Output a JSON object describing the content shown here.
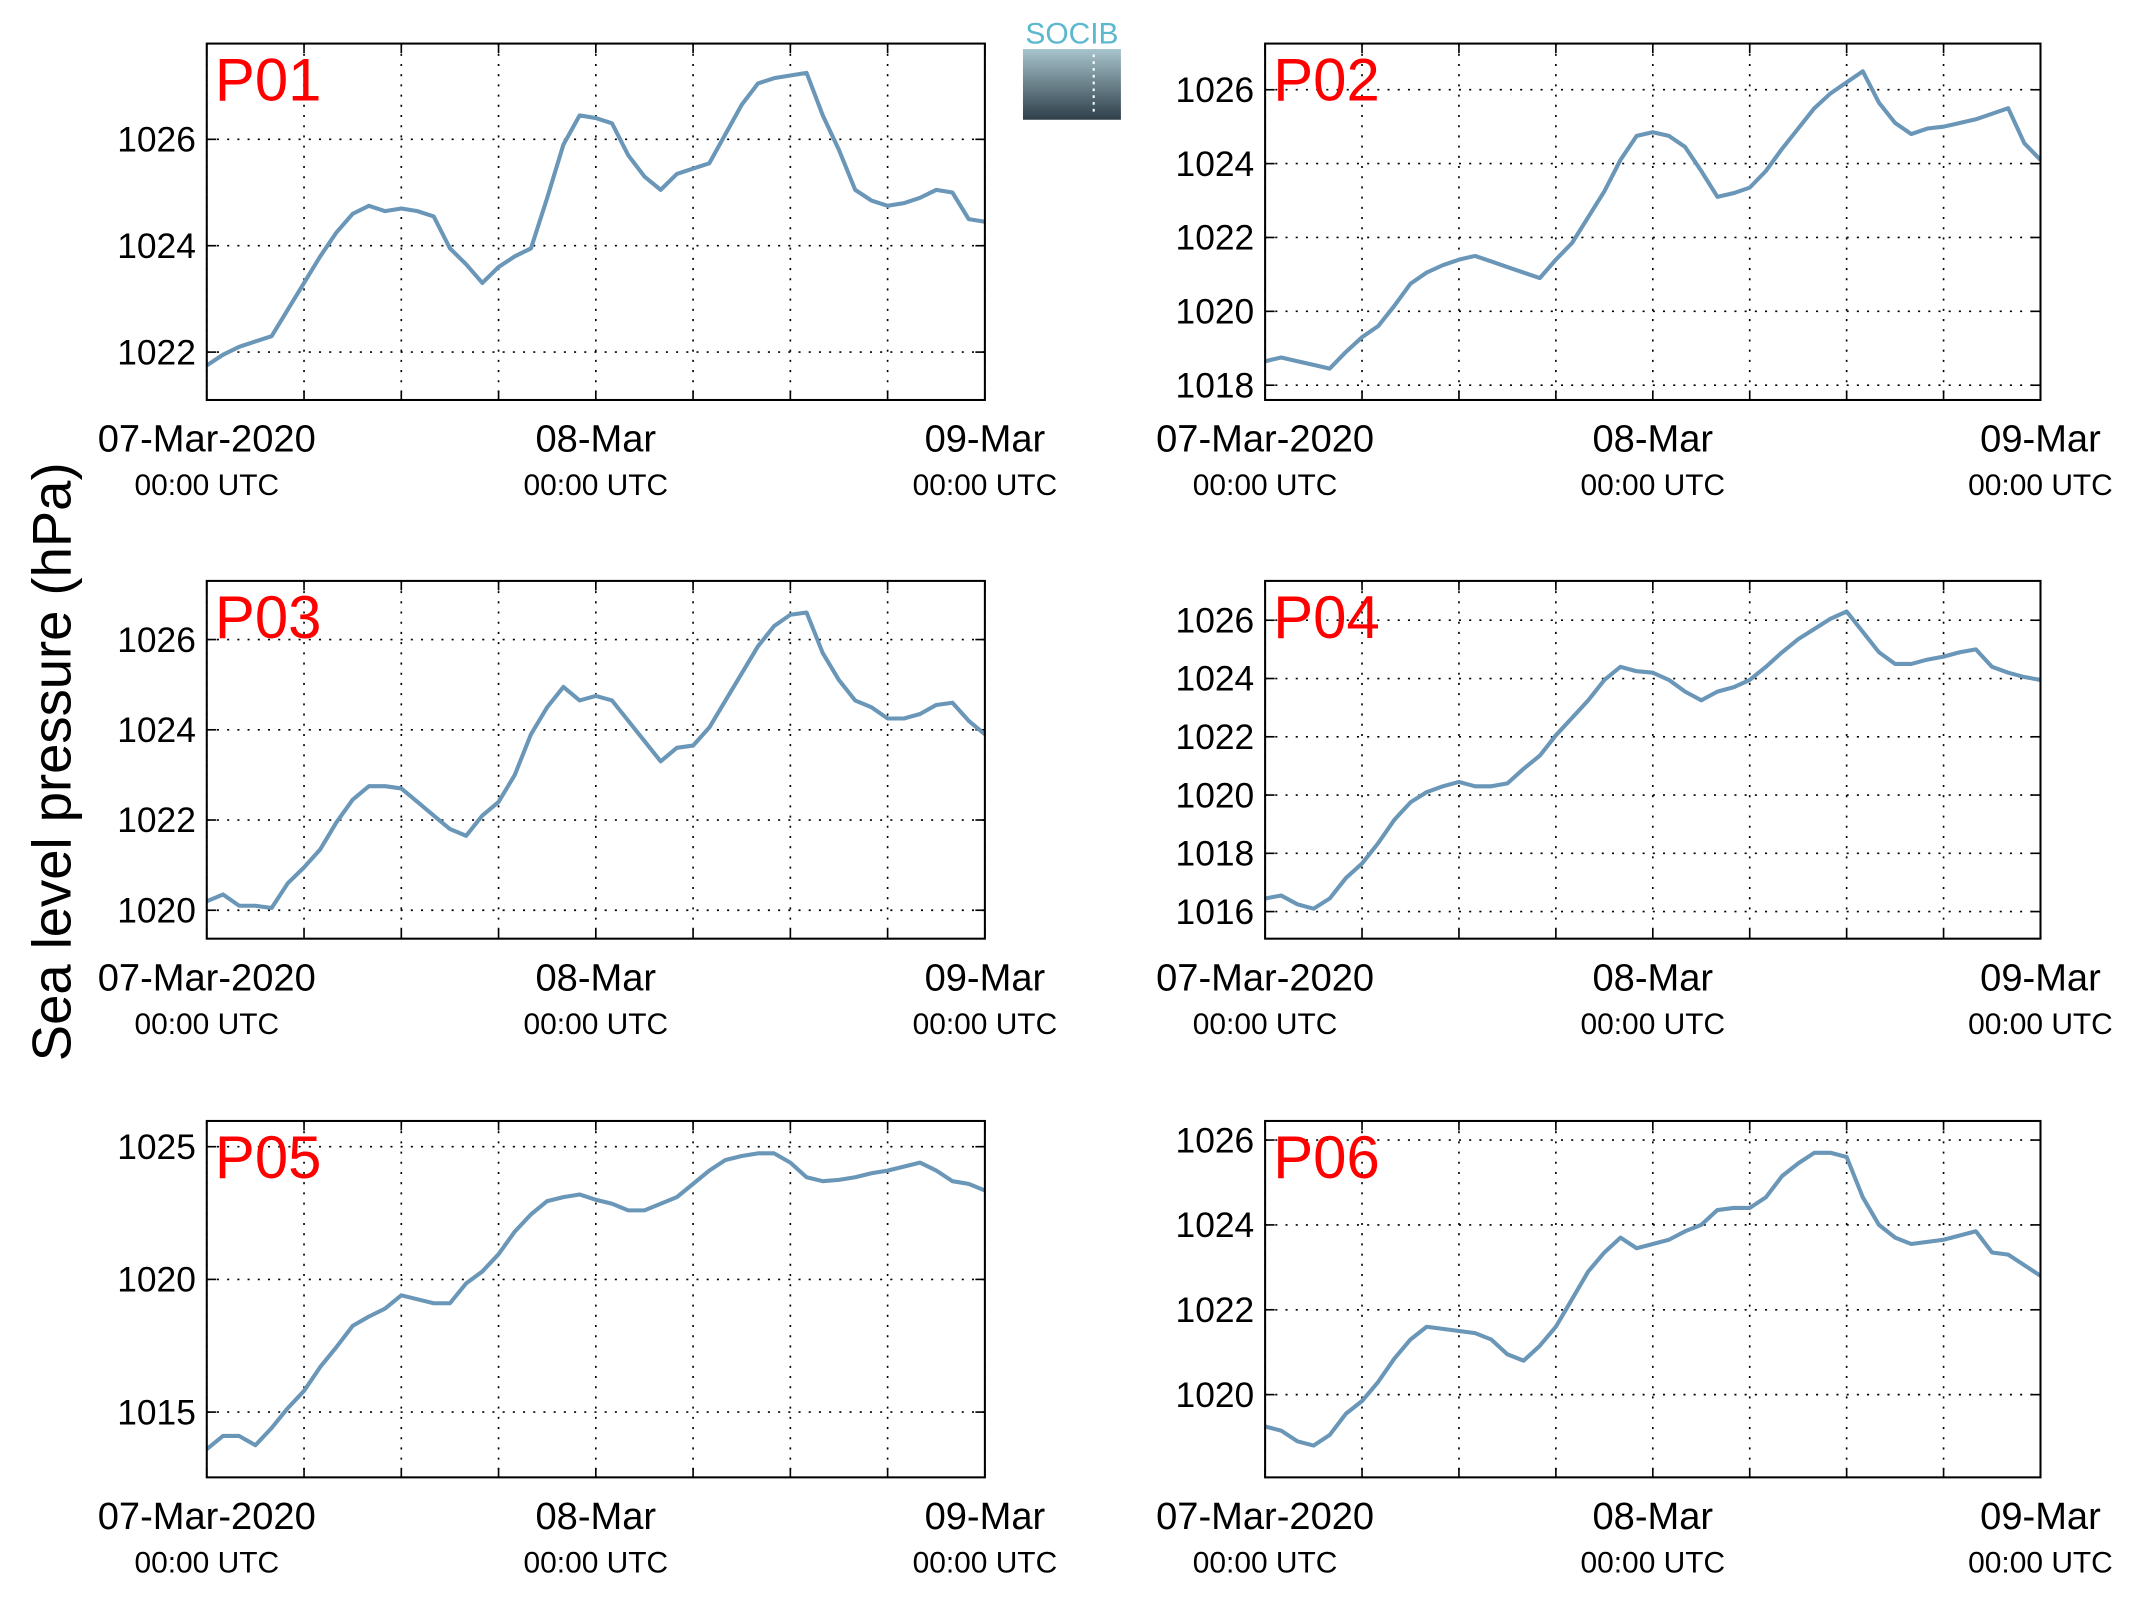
{
  "ylabel": "Sea level pressure (hPa)",
  "logo": "SOCIB",
  "chart_data": [
    {
      "type": "line",
      "title": "P01",
      "title_color": "#ff0000",
      "color": "#6a96b8",
      "grid": true,
      "x": [
        0,
        1,
        2,
        3,
        4,
        5,
        6,
        7,
        8,
        9,
        10,
        11,
        12,
        13,
        14,
        15,
        16,
        17,
        18,
        19,
        20,
        21,
        22,
        23,
        24,
        25,
        26,
        27,
        28,
        29,
        30,
        31,
        32,
        33,
        34,
        35,
        36,
        37,
        38,
        39,
        40,
        41,
        42,
        43,
        44,
        45,
        46,
        47,
        48
      ],
      "values": [
        1021.75,
        1021.95,
        1022.1,
        1022.2,
        1022.3,
        1022.8,
        1023.3,
        1023.8,
        1024.25,
        1024.6,
        1024.75,
        1024.65,
        1024.7,
        1024.65,
        1024.55,
        1023.95,
        1023.65,
        1023.3,
        1023.6,
        1023.8,
        1023.95,
        1024.9,
        1025.9,
        1026.45,
        1026.4,
        1026.3,
        1025.7,
        1025.3,
        1025.05,
        1025.35,
        1025.45,
        1025.55,
        1026.1,
        1026.65,
        1027.05,
        1027.15,
        1027.2,
        1027.25,
        1026.45,
        1025.8,
        1025.05,
        1024.85,
        1024.75,
        1024.8,
        1024.9,
        1025.05,
        1025.0,
        1024.5,
        1024.45
      ],
      "xlim": [
        0,
        48
      ],
      "xticks": [
        {
          "value": 0,
          "label": "07-Mar-2020",
          "sublabel": "00:00 UTC"
        },
        {
          "value": 24,
          "label": "08-Mar",
          "sublabel": "00:00 UTC"
        },
        {
          "value": 48,
          "label": "09-Mar",
          "sublabel": "00:00 UTC"
        }
      ],
      "xminorticks": [
        6,
        12,
        18,
        30,
        36,
        42
      ],
      "ylim": [
        1021.1,
        1027.8
      ],
      "yticks": [
        1022,
        1024,
        1026
      ]
    },
    {
      "type": "line",
      "title": "P02",
      "title_color": "#ff0000",
      "color": "#6a96b8",
      "grid": true,
      "x": [
        0,
        1,
        2,
        3,
        4,
        5,
        6,
        7,
        8,
        9,
        10,
        11,
        12,
        13,
        14,
        15,
        16,
        17,
        18,
        19,
        20,
        21,
        22,
        23,
        24,
        25,
        26,
        27,
        28,
        29,
        30,
        31,
        32,
        33,
        34,
        35,
        36,
        37,
        38,
        39,
        40,
        41,
        42,
        43,
        44,
        45,
        46,
        47,
        48
      ],
      "values": [
        1018.65,
        1018.75,
        1018.65,
        1018.55,
        1018.45,
        1018.9,
        1019.3,
        1019.6,
        1020.15,
        1020.75,
        1021.05,
        1021.25,
        1021.4,
        1021.5,
        1021.35,
        1021.2,
        1021.05,
        1020.9,
        1021.4,
        1021.85,
        1022.55,
        1023.25,
        1024.1,
        1024.75,
        1024.85,
        1024.75,
        1024.45,
        1023.8,
        1023.1,
        1023.2,
        1023.35,
        1023.8,
        1024.4,
        1024.95,
        1025.5,
        1025.9,
        1026.2,
        1026.5,
        1025.65,
        1025.1,
        1024.8,
        1024.95,
        1025.0,
        1025.1,
        1025.2,
        1025.35,
        1025.5,
        1024.55,
        1024.1
      ],
      "xlim": [
        0,
        48
      ],
      "xticks": [
        {
          "value": 0,
          "label": "07-Mar-2020",
          "sublabel": "00:00 UTC"
        },
        {
          "value": 24,
          "label": "08-Mar",
          "sublabel": "00:00 UTC"
        },
        {
          "value": 48,
          "label": "09-Mar",
          "sublabel": "00:00 UTC"
        }
      ],
      "xminorticks": [
        6,
        12,
        18,
        30,
        36,
        42
      ],
      "ylim": [
        1017.6,
        1027.25
      ],
      "yticks": [
        1018,
        1020,
        1022,
        1024,
        1026
      ]
    },
    {
      "type": "line",
      "title": "P03",
      "title_color": "#ff0000",
      "color": "#6a96b8",
      "grid": true,
      "x": [
        0,
        1,
        2,
        3,
        4,
        5,
        6,
        7,
        8,
        9,
        10,
        11,
        12,
        13,
        14,
        15,
        16,
        17,
        18,
        19,
        20,
        21,
        22,
        23,
        24,
        25,
        26,
        27,
        28,
        29,
        30,
        31,
        32,
        33,
        34,
        35,
        36,
        37,
        38,
        39,
        40,
        41,
        42,
        43,
        44,
        45,
        46,
        47,
        48
      ],
      "values": [
        1020.2,
        1020.35,
        1020.1,
        1020.1,
        1020.05,
        1020.6,
        1020.95,
        1021.35,
        1021.95,
        1022.45,
        1022.75,
        1022.75,
        1022.7,
        1022.4,
        1022.1,
        1021.8,
        1021.65,
        1022.1,
        1022.4,
        1023.0,
        1023.9,
        1024.5,
        1024.95,
        1024.65,
        1024.75,
        1024.65,
        1024.2,
        1023.75,
        1023.3,
        1023.6,
        1023.65,
        1024.05,
        1024.65,
        1025.25,
        1025.85,
        1026.3,
        1026.55,
        1026.6,
        1025.7,
        1025.1,
        1024.65,
        1024.5,
        1024.25,
        1024.25,
        1024.35,
        1024.55,
        1024.6,
        1024.2,
        1023.9
      ],
      "xlim": [
        0,
        48
      ],
      "xticks": [
        {
          "value": 0,
          "label": "07-Mar-2020",
          "sublabel": "00:00 UTC"
        },
        {
          "value": 24,
          "label": "08-Mar",
          "sublabel": "00:00 UTC"
        },
        {
          "value": 48,
          "label": "09-Mar",
          "sublabel": "00:00 UTC"
        }
      ],
      "xminorticks": [
        6,
        12,
        18,
        30,
        36,
        42
      ],
      "ylim": [
        1019.37,
        1027.3
      ],
      "yticks": [
        1020,
        1022,
        1024,
        1026
      ]
    },
    {
      "type": "line",
      "title": "P04",
      "title_color": "#ff0000",
      "color": "#6a96b8",
      "grid": true,
      "x": [
        0,
        1,
        2,
        3,
        4,
        5,
        6,
        7,
        8,
        9,
        10,
        11,
        12,
        13,
        14,
        15,
        16,
        17,
        18,
        19,
        20,
        21,
        22,
        23,
        24,
        25,
        26,
        27,
        28,
        29,
        30,
        31,
        32,
        33,
        34,
        35,
        36,
        37,
        38,
        39,
        40,
        41,
        42,
        43,
        44,
        45,
        46,
        47,
        48
      ],
      "values": [
        1016.45,
        1016.55,
        1016.25,
        1016.1,
        1016.45,
        1017.15,
        1017.65,
        1018.35,
        1019.15,
        1019.75,
        1020.1,
        1020.3,
        1020.45,
        1020.3,
        1020.3,
        1020.4,
        1020.9,
        1021.35,
        1022.05,
        1022.65,
        1023.25,
        1023.95,
        1024.4,
        1024.25,
        1024.2,
        1023.95,
        1023.55,
        1023.25,
        1023.55,
        1023.7,
        1023.95,
        1024.4,
        1024.9,
        1025.35,
        1025.7,
        1026.05,
        1026.3,
        1025.6,
        1024.9,
        1024.5,
        1024.5,
        1024.65,
        1024.75,
        1024.9,
        1025.0,
        1024.4,
        1024.2,
        1024.05,
        1023.95
      ],
      "xlim": [
        0,
        48
      ],
      "xticks": [
        {
          "value": 0,
          "label": "07-Mar-2020",
          "sublabel": "00:00 UTC"
        },
        {
          "value": 24,
          "label": "08-Mar",
          "sublabel": "00:00 UTC"
        },
        {
          "value": 48,
          "label": "09-Mar",
          "sublabel": "00:00 UTC"
        }
      ],
      "xminorticks": [
        6,
        12,
        18,
        30,
        36,
        42
      ],
      "ylim": [
        1015.07,
        1027.35
      ],
      "yticks": [
        1016,
        1018,
        1020,
        1022,
        1024,
        1026
      ]
    },
    {
      "type": "line",
      "title": "P05",
      "title_color": "#ff0000",
      "color": "#6a96b8",
      "grid": true,
      "x": [
        0,
        1,
        2,
        3,
        4,
        5,
        6,
        7,
        8,
        9,
        10,
        11,
        12,
        13,
        14,
        15,
        16,
        17,
        18,
        19,
        20,
        21,
        22,
        23,
        24,
        25,
        26,
        27,
        28,
        29,
        30,
        31,
        32,
        33,
        34,
        35,
        36,
        37,
        38,
        39,
        40,
        41,
        42,
        43,
        44,
        45,
        46,
        47,
        48
      ],
      "values": [
        1013.6,
        1014.1,
        1014.1,
        1013.75,
        1014.4,
        1015.15,
        1015.8,
        1016.7,
        1017.45,
        1018.25,
        1018.6,
        1018.9,
        1019.4,
        1019.25,
        1019.1,
        1019.1,
        1019.85,
        1020.3,
        1020.95,
        1021.8,
        1022.45,
        1022.95,
        1023.1,
        1023.2,
        1023.0,
        1022.85,
        1022.6,
        1022.6,
        1022.85,
        1023.1,
        1023.6,
        1024.1,
        1024.5,
        1024.65,
        1024.75,
        1024.75,
        1024.4,
        1023.85,
        1023.7,
        1023.75,
        1023.85,
        1024.0,
        1024.1,
        1024.25,
        1024.4,
        1024.1,
        1023.7,
        1023.6,
        1023.35
      ],
      "xlim": [
        0,
        48
      ],
      "xticks": [
        {
          "value": 0,
          "label": "07-Mar-2020",
          "sublabel": "00:00 UTC"
        },
        {
          "value": 24,
          "label": "08-Mar",
          "sublabel": "00:00 UTC"
        },
        {
          "value": 48,
          "label": "09-Mar",
          "sublabel": "00:00 UTC"
        }
      ],
      "xminorticks": [
        6,
        12,
        18,
        30,
        36,
        42
      ],
      "ylim": [
        1012.54,
        1025.97
      ],
      "yticks": [
        1015,
        1020,
        1025
      ]
    },
    {
      "type": "line",
      "title": "P06",
      "title_color": "#ff0000",
      "color": "#6a96b8",
      "grid": true,
      "x": [
        0,
        1,
        2,
        3,
        4,
        5,
        6,
        7,
        8,
        9,
        10,
        11,
        12,
        13,
        14,
        15,
        16,
        17,
        18,
        19,
        20,
        21,
        22,
        23,
        24,
        25,
        26,
        27,
        28,
        29,
        30,
        31,
        32,
        33,
        34,
        35,
        36,
        37,
        38,
        39,
        40,
        41,
        42,
        43,
        44,
        45,
        46,
        47,
        48
      ],
      "values": [
        1019.25,
        1019.15,
        1018.9,
        1018.8,
        1019.05,
        1019.55,
        1019.85,
        1020.3,
        1020.85,
        1021.3,
        1021.6,
        1021.55,
        1021.5,
        1021.45,
        1021.3,
        1020.95,
        1020.8,
        1021.15,
        1021.6,
        1022.25,
        1022.9,
        1023.35,
        1023.7,
        1023.45,
        1023.55,
        1023.65,
        1023.85,
        1024.0,
        1024.35,
        1024.4,
        1024.4,
        1024.65,
        1025.15,
        1025.45,
        1025.7,
        1025.7,
        1025.6,
        1024.65,
        1024.0,
        1023.7,
        1023.55,
        1023.6,
        1023.65,
        1023.75,
        1023.85,
        1023.35,
        1023.3,
        1023.05,
        1022.8
      ],
      "xlim": [
        0,
        48
      ],
      "xticks": [
        {
          "value": 0,
          "label": "07-Mar-2020",
          "sublabel": "00:00 UTC"
        },
        {
          "value": 24,
          "label": "08-Mar",
          "sublabel": "00:00 UTC"
        },
        {
          "value": 48,
          "label": "09-Mar",
          "sublabel": "00:00 UTC"
        }
      ],
      "xminorticks": [
        6,
        12,
        18,
        30,
        36,
        42
      ],
      "ylim": [
        1018.05,
        1026.45
      ],
      "yticks": [
        1020,
        1022,
        1024,
        1026
      ]
    }
  ]
}
